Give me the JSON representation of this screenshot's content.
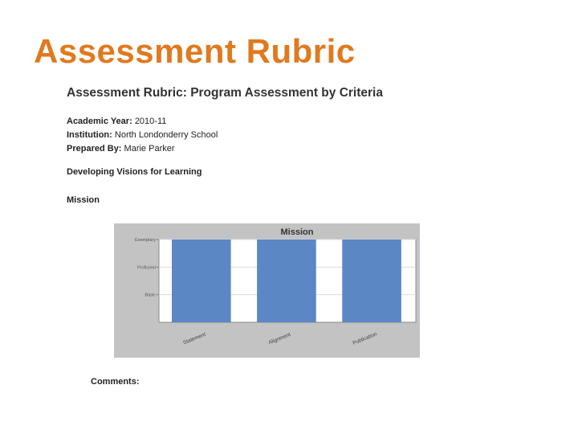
{
  "slide": {
    "title": "Assessment Rubric"
  },
  "document": {
    "title": "Assessment Rubric: Program Assessment by Criteria",
    "academic_year_label": "Academic Year:",
    "academic_year": "2010-11",
    "institution_label": "Institution:",
    "institution": "North Londonderry School",
    "prepared_by_label": "Prepared By:",
    "prepared_by": "Marie  Parker",
    "section_heading": "Developing Visions for Learning",
    "subsection_heading": "Mission",
    "comments_label": "Comments:"
  },
  "chart_data": {
    "type": "bar",
    "title": "Mission",
    "categories": [
      "Statement",
      "Alignment",
      "Publication"
    ],
    "levels": [
      "Basic",
      "Proficient",
      "Exemplary"
    ],
    "values": [
      3,
      3,
      3
    ],
    "ylim": [
      0,
      3
    ],
    "bar_color": "#5b87c5",
    "panel_color": "#c3c3c3"
  }
}
